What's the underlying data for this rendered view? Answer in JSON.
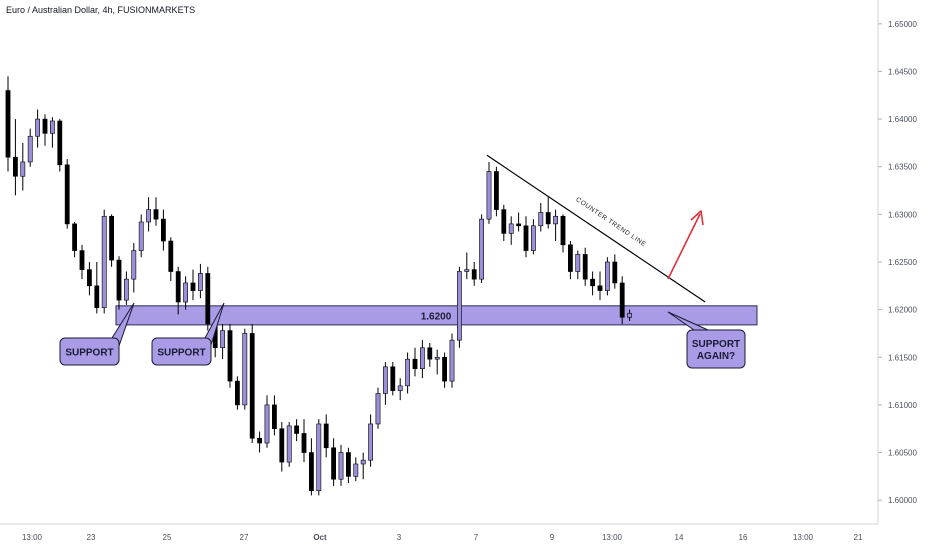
{
  "header": {
    "title": "Euro / Australian Dollar, 4h, FUSIONMARKETS"
  },
  "colors": {
    "bull": "#9b8fd9",
    "bear": "#000000",
    "zone": "#a99be6",
    "zone_border": "#2b2b55",
    "callout": "#a99be6",
    "arrow": "#e0303c",
    "trendline": "#000000"
  },
  "chart_data": {
    "type": "candlestick",
    "symbol": "Euro / Australian Dollar",
    "interval": "4h",
    "broker": "FUSIONMARKETS",
    "ylim": [
      1.5975,
      1.6525
    ],
    "y_ticks": [
      "1.65000",
      "1.64500",
      "1.64000",
      "1.63500",
      "1.63000",
      "1.62500",
      "1.62000",
      "1.61500",
      "1.61000",
      "1.60500",
      "1.60000"
    ],
    "x_ticks": [
      "13:00",
      "23",
      "25",
      "27",
      "Oct",
      "3",
      "7",
      "9",
      "13:00",
      "14",
      "16",
      "13:00",
      "21"
    ],
    "candles": [
      [
        1.643,
        1.6445,
        1.6345,
        1.636
      ],
      [
        1.636,
        1.64,
        1.632,
        1.634
      ],
      [
        1.634,
        1.6375,
        1.6325,
        1.6355
      ],
      [
        1.6355,
        1.639,
        1.635,
        1.6382
      ],
      [
        1.6382,
        1.641,
        1.637,
        1.64
      ],
      [
        1.64,
        1.6405,
        1.6372,
        1.6385
      ],
      [
        1.6385,
        1.6402,
        1.637,
        1.6398
      ],
      [
        1.6398,
        1.64,
        1.6345,
        1.6352
      ],
      [
        1.6352,
        1.6358,
        1.6285,
        1.629
      ],
      [
        1.629,
        1.6292,
        1.6255,
        1.6262
      ],
      [
        1.6262,
        1.6268,
        1.6232,
        1.6242
      ],
      [
        1.6242,
        1.625,
        1.6215,
        1.6225
      ],
      [
        1.6225,
        1.625,
        1.6196,
        1.6202
      ],
      [
        1.6202,
        1.6305,
        1.6196,
        1.6298
      ],
      [
        1.6298,
        1.63,
        1.6245,
        1.6252
      ],
      [
        1.6252,
        1.6256,
        1.62,
        1.621
      ],
      [
        1.621,
        1.624,
        1.6205,
        1.6232
      ],
      [
        1.6232,
        1.627,
        1.6218,
        1.6262
      ],
      [
        1.6262,
        1.63,
        1.6255,
        1.6292
      ],
      [
        1.6292,
        1.6318,
        1.6282,
        1.6305
      ],
      [
        1.6305,
        1.6318,
        1.6288,
        1.6295
      ],
      [
        1.6295,
        1.6305,
        1.6262,
        1.6272
      ],
      [
        1.6272,
        1.6276,
        1.623,
        1.624
      ],
      [
        1.624,
        1.6245,
        1.6195,
        1.6208
      ],
      [
        1.6208,
        1.6235,
        1.62,
        1.6228
      ],
      [
        1.6228,
        1.6242,
        1.621,
        1.622
      ],
      [
        1.622,
        1.6248,
        1.6212,
        1.6238
      ],
      [
        1.6238,
        1.6245,
        1.6178,
        1.6185
      ],
      [
        1.6185,
        1.619,
        1.615,
        1.616
      ],
      [
        1.616,
        1.6185,
        1.6148,
        1.6178
      ],
      [
        1.6178,
        1.6185,
        1.6118,
        1.6125
      ],
      [
        1.6125,
        1.613,
        1.6095,
        1.61
      ],
      [
        1.61,
        1.618,
        1.6095,
        1.6175
      ],
      [
        1.6175,
        1.6185,
        1.606,
        1.6065
      ],
      [
        1.6065,
        1.6072,
        1.605,
        1.606
      ],
      [
        1.606,
        1.611,
        1.6055,
        1.61
      ],
      [
        1.61,
        1.611,
        1.6068,
        1.6075
      ],
      [
        1.6075,
        1.6082,
        1.603,
        1.604
      ],
      [
        1.604,
        1.6082,
        1.6035,
        1.6078
      ],
      [
        1.6078,
        1.6085,
        1.6062,
        1.607
      ],
      [
        1.607,
        1.6085,
        1.604,
        1.605
      ],
      [
        1.605,
        1.6065,
        1.6005,
        1.601
      ],
      [
        1.601,
        1.6085,
        1.6005,
        1.608
      ],
      [
        1.608,
        1.609,
        1.6045,
        1.6055
      ],
      [
        1.6055,
        1.6065,
        1.6015,
        1.6022
      ],
      [
        1.6022,
        1.6058,
        1.6015,
        1.605
      ],
      [
        1.605,
        1.6055,
        1.6018,
        1.6025
      ],
      [
        1.6025,
        1.6045,
        1.602,
        1.6038
      ],
      [
        1.6038,
        1.605,
        1.6022,
        1.6042
      ],
      [
        1.6042,
        1.609,
        1.6035,
        1.608
      ],
      [
        1.608,
        1.6118,
        1.6075,
        1.6112
      ],
      [
        1.6112,
        1.6145,
        1.61,
        1.614
      ],
      [
        1.614,
        1.6145,
        1.611,
        1.6115
      ],
      [
        1.6115,
        1.6128,
        1.6105,
        1.612
      ],
      [
        1.612,
        1.6155,
        1.6112,
        1.6148
      ],
      [
        1.6148,
        1.616,
        1.613,
        1.6138
      ],
      [
        1.6138,
        1.6168,
        1.6128,
        1.616
      ],
      [
        1.616,
        1.6165,
        1.614,
        1.6148
      ],
      [
        1.6148,
        1.6158,
        1.6132,
        1.615
      ],
      [
        1.615,
        1.6155,
        1.6118,
        1.6125
      ],
      [
        1.6125,
        1.6175,
        1.6118,
        1.6168
      ],
      [
        1.6168,
        1.6245,
        1.616,
        1.624
      ],
      [
        1.624,
        1.626,
        1.6232,
        1.6242
      ],
      [
        1.6242,
        1.625,
        1.6225,
        1.6232
      ],
      [
        1.6232,
        1.63,
        1.6228,
        1.6295
      ],
      [
        1.6295,
        1.6355,
        1.629,
        1.6345
      ],
      [
        1.6345,
        1.635,
        1.6298,
        1.6305
      ],
      [
        1.6305,
        1.631,
        1.6272,
        1.628
      ],
      [
        1.628,
        1.6298,
        1.6268,
        1.629
      ],
      [
        1.629,
        1.6302,
        1.6282,
        1.6288
      ],
      [
        1.6288,
        1.6298,
        1.6255,
        1.6262
      ],
      [
        1.6262,
        1.6295,
        1.6258,
        1.6288
      ],
      [
        1.6288,
        1.6312,
        1.6282,
        1.6302
      ],
      [
        1.6302,
        1.6318,
        1.6285,
        1.629
      ],
      [
        1.629,
        1.6305,
        1.6272,
        1.6298
      ],
      [
        1.6298,
        1.63,
        1.626,
        1.6268
      ],
      [
        1.6268,
        1.6272,
        1.6232,
        1.624
      ],
      [
        1.624,
        1.6262,
        1.6232,
        1.6258
      ],
      [
        1.6258,
        1.6265,
        1.6225,
        1.6232
      ],
      [
        1.6232,
        1.624,
        1.6215,
        1.6225
      ],
      [
        1.6225,
        1.624,
        1.621,
        1.622
      ],
      [
        1.622,
        1.6255,
        1.6215,
        1.625
      ],
      [
        1.625,
        1.6258,
        1.6222,
        1.6228
      ],
      [
        1.6228,
        1.6235,
        1.6185,
        1.6192
      ],
      [
        1.6192,
        1.62,
        1.6188,
        1.6196
      ]
    ],
    "support_zone": {
      "from": 1.6184,
      "to": 1.6204,
      "label": "1.6200"
    },
    "trendline": {
      "from": [
        65,
        1.6362
      ],
      "to": [
        88,
        1.6208
      ],
      "label": "COUNTER TREND LINE"
    },
    "callouts": [
      {
        "lines": [
          "SUPPORT"
        ]
      },
      {
        "lines": [
          "SUPPORT"
        ]
      },
      {
        "lines": [
          "SUPPORT",
          "AGAIN?"
        ]
      }
    ]
  }
}
